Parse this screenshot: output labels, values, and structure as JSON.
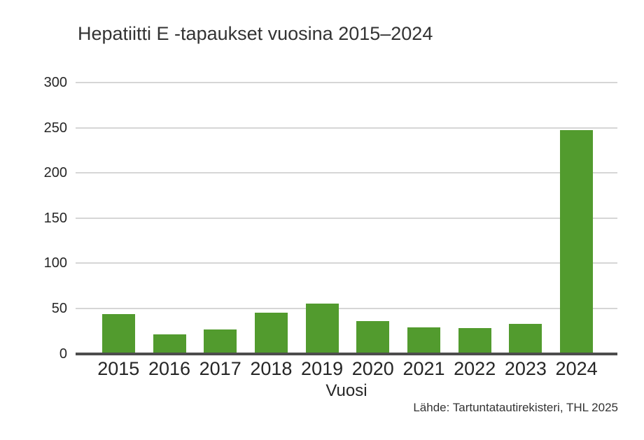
{
  "chart_data": {
    "type": "bar",
    "title": "Hepatiitti E -tapaukset vuosina 2015–2024",
    "xlabel": "Vuosi",
    "source_note": "Lähde: Tartuntatautirekisteri, THL 2025",
    "categories": [
      "2015",
      "2016",
      "2017",
      "2018",
      "2019",
      "2020",
      "2021",
      "2022",
      "2023",
      "2024"
    ],
    "values": [
      44,
      21,
      27,
      45,
      55,
      36,
      29,
      28,
      33,
      247
    ],
    "ylabel": "",
    "ylim": [
      0,
      300
    ],
    "yticks": [
      0,
      50,
      100,
      150,
      200,
      250,
      300
    ],
    "grid": "horizontal",
    "legend": "none",
    "colors": {
      "bar_color": "#529b2e",
      "axis_line_color": "#4d4d4d",
      "gridline_color": "#d6d6d6",
      "tick_text_color": "#262626",
      "title_text_color": "#333333",
      "background": "#ffffff"
    }
  }
}
